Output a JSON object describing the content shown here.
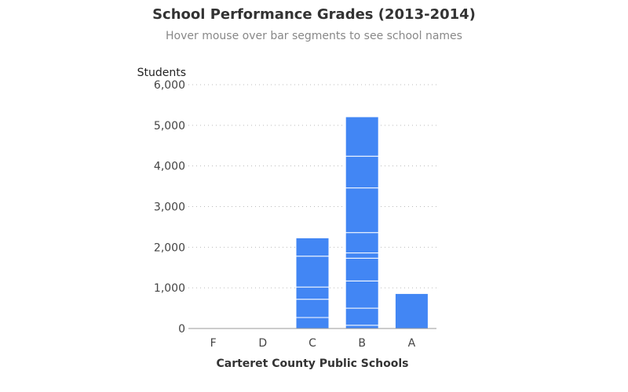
{
  "title": "School Performance Grades (2013-2014)",
  "subtitle": "Hover mouse over bar segments to see school names",
  "chart_data": {
    "type": "bar",
    "stacked": true,
    "categories": [
      "F",
      "D",
      "C",
      "B",
      "A"
    ],
    "segments": [
      [],
      [],
      [
        270,
        450,
        300,
        760,
        450
      ],
      [
        80,
        420,
        670,
        560,
        130,
        500,
        1100,
        780,
        970
      ],
      [
        860
      ]
    ],
    "totals": [
      0,
      0,
      2230,
      5210,
      860
    ],
    "xlabel": "Carteret County Public Schools",
    "ylabel": "Students",
    "ylim": [
      0,
      6000
    ],
    "yticks": [
      0,
      1000,
      2000,
      3000,
      4000,
      5000,
      6000
    ],
    "ytick_labels": [
      "0",
      "1,000",
      "2,000",
      "3,000",
      "4,000",
      "5,000",
      "6,000"
    ],
    "grid": true,
    "legend": "none",
    "bar_color": "#4286f4",
    "segment_border_color": "#ffffff"
  }
}
